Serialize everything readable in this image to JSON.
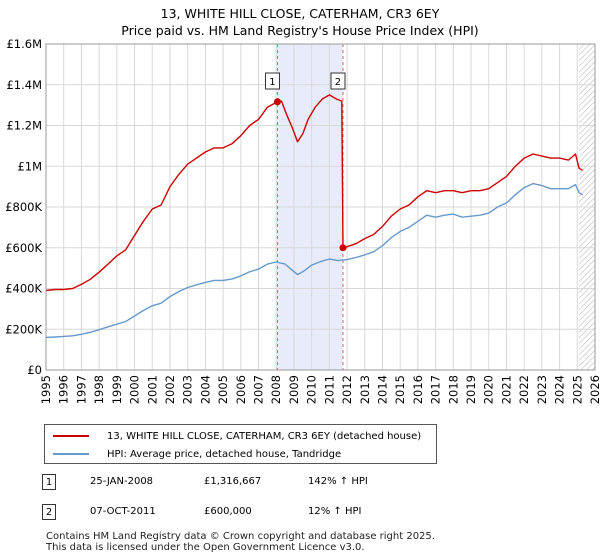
{
  "header": {
    "title": "13, WHITE HILL CLOSE, CATERHAM, CR3 6EY",
    "subtitle": "Price paid vs. HM Land Registry's House Price Index (HPI)"
  },
  "colors": {
    "property": "#cc0000",
    "hpi": "#6699cc",
    "shade": "#e8ecfa",
    "marker_line": "#e06060"
  },
  "chart_data": {
    "type": "line",
    "xlim": [
      1995,
      2026
    ],
    "ylim": [
      0,
      1600000
    ],
    "yticks": [
      {
        "value": 0,
        "label": "£0"
      },
      {
        "value": 200000,
        "label": "£200K"
      },
      {
        "value": 400000,
        "label": "£400K"
      },
      {
        "value": 600000,
        "label": "£600K"
      },
      {
        "value": 800000,
        "label": "£800K"
      },
      {
        "value": 1000000,
        "label": "£1M"
      },
      {
        "value": 1200000,
        "label": "£1.2M"
      },
      {
        "value": 1400000,
        "label": "£1.4M"
      },
      {
        "value": 1600000,
        "label": "£1.6M"
      }
    ],
    "xticks": [
      "1995",
      "1996",
      "1997",
      "1998",
      "1999",
      "2000",
      "2001",
      "2002",
      "2003",
      "2004",
      "2005",
      "2006",
      "2007",
      "2008",
      "2009",
      "2010",
      "2011",
      "2012",
      "2013",
      "2014",
      "2015",
      "2016",
      "2017",
      "2018",
      "2019",
      "2020",
      "2021",
      "2022",
      "2023",
      "2024",
      "2025",
      "2026"
    ],
    "shaded_period": [
      2008.07,
      2011.77
    ],
    "hatch_from": 2025.1,
    "series": [
      {
        "name": "13, WHITE HILL CLOSE, CATERHAM, CR3 6EY (detached house)",
        "color": "#cc0000",
        "points": [
          [
            1995.0,
            390000
          ],
          [
            1995.5,
            395000
          ],
          [
            1996.0,
            395000
          ],
          [
            1996.5,
            400000
          ],
          [
            1997.0,
            420000
          ],
          [
            1997.5,
            445000
          ],
          [
            1998.0,
            480000
          ],
          [
            1998.5,
            520000
          ],
          [
            1999.0,
            560000
          ],
          [
            1999.5,
            590000
          ],
          [
            2000.0,
            660000
          ],
          [
            2000.5,
            730000
          ],
          [
            2001.0,
            790000
          ],
          [
            2001.5,
            810000
          ],
          [
            2002.0,
            900000
          ],
          [
            2002.5,
            960000
          ],
          [
            2003.0,
            1010000
          ],
          [
            2003.5,
            1040000
          ],
          [
            2004.0,
            1070000
          ],
          [
            2004.5,
            1090000
          ],
          [
            2005.0,
            1090000
          ],
          [
            2005.5,
            1110000
          ],
          [
            2006.0,
            1150000
          ],
          [
            2006.5,
            1200000
          ],
          [
            2007.0,
            1230000
          ],
          [
            2007.5,
            1290000
          ],
          [
            2008.07,
            1316667
          ],
          [
            2008.3,
            1320000
          ],
          [
            2008.6,
            1250000
          ],
          [
            2008.9,
            1190000
          ],
          [
            2009.2,
            1120000
          ],
          [
            2009.5,
            1160000
          ],
          [
            2009.8,
            1230000
          ],
          [
            2010.2,
            1290000
          ],
          [
            2010.6,
            1330000
          ],
          [
            2011.0,
            1350000
          ],
          [
            2011.4,
            1330000
          ],
          [
            2011.7,
            1320000
          ],
          [
            2011.77,
            600000
          ],
          [
            2012.0,
            605000
          ],
          [
            2012.5,
            620000
          ],
          [
            2013.0,
            645000
          ],
          [
            2013.5,
            665000
          ],
          [
            2014.0,
            705000
          ],
          [
            2014.5,
            755000
          ],
          [
            2015.0,
            790000
          ],
          [
            2015.5,
            810000
          ],
          [
            2016.0,
            850000
          ],
          [
            2016.5,
            880000
          ],
          [
            2017.0,
            870000
          ],
          [
            2017.5,
            880000
          ],
          [
            2018.0,
            880000
          ],
          [
            2018.5,
            870000
          ],
          [
            2019.0,
            880000
          ],
          [
            2019.5,
            880000
          ],
          [
            2020.0,
            890000
          ],
          [
            2020.5,
            920000
          ],
          [
            2021.0,
            950000
          ],
          [
            2021.5,
            1000000
          ],
          [
            2022.0,
            1040000
          ],
          [
            2022.5,
            1060000
          ],
          [
            2023.0,
            1050000
          ],
          [
            2023.5,
            1040000
          ],
          [
            2024.0,
            1040000
          ],
          [
            2024.5,
            1030000
          ],
          [
            2024.9,
            1060000
          ],
          [
            2025.1,
            990000
          ],
          [
            2025.3,
            980000
          ]
        ]
      },
      {
        "name": "HPI: Average price, detached house, Tandridge",
        "color": "#6699cc",
        "points": [
          [
            1995.0,
            160000
          ],
          [
            1995.5,
            162000
          ],
          [
            1996.0,
            165000
          ],
          [
            1996.5,
            168000
          ],
          [
            1997.0,
            175000
          ],
          [
            1997.5,
            185000
          ],
          [
            1998.0,
            198000
          ],
          [
            1998.5,
            212000
          ],
          [
            1999.0,
            225000
          ],
          [
            1999.5,
            238000
          ],
          [
            2000.0,
            265000
          ],
          [
            2000.5,
            292000
          ],
          [
            2001.0,
            315000
          ],
          [
            2001.5,
            328000
          ],
          [
            2002.0,
            360000
          ],
          [
            2002.5,
            385000
          ],
          [
            2003.0,
            405000
          ],
          [
            2003.5,
            418000
          ],
          [
            2004.0,
            430000
          ],
          [
            2004.5,
            440000
          ],
          [
            2005.0,
            440000
          ],
          [
            2005.5,
            447000
          ],
          [
            2006.0,
            462000
          ],
          [
            2006.5,
            482000
          ],
          [
            2007.0,
            495000
          ],
          [
            2007.5,
            520000
          ],
          [
            2008.0,
            530000
          ],
          [
            2008.5,
            520000
          ],
          [
            2008.9,
            490000
          ],
          [
            2009.2,
            468000
          ],
          [
            2009.6,
            488000
          ],
          [
            2010.0,
            515000
          ],
          [
            2010.5,
            532000
          ],
          [
            2011.0,
            545000
          ],
          [
            2011.5,
            537000
          ],
          [
            2012.0,
            542000
          ],
          [
            2012.5,
            552000
          ],
          [
            2013.0,
            565000
          ],
          [
            2013.5,
            580000
          ],
          [
            2014.0,
            610000
          ],
          [
            2014.5,
            650000
          ],
          [
            2015.0,
            680000
          ],
          [
            2015.5,
            700000
          ],
          [
            2016.0,
            730000
          ],
          [
            2016.5,
            760000
          ],
          [
            2017.0,
            750000
          ],
          [
            2017.5,
            760000
          ],
          [
            2018.0,
            765000
          ],
          [
            2018.5,
            750000
          ],
          [
            2019.0,
            755000
          ],
          [
            2019.5,
            760000
          ],
          [
            2020.0,
            770000
          ],
          [
            2020.5,
            800000
          ],
          [
            2021.0,
            820000
          ],
          [
            2021.5,
            860000
          ],
          [
            2022.0,
            895000
          ],
          [
            2022.5,
            915000
          ],
          [
            2023.0,
            905000
          ],
          [
            2023.5,
            890000
          ],
          [
            2024.0,
            890000
          ],
          [
            2024.5,
            890000
          ],
          [
            2024.9,
            910000
          ],
          [
            2025.1,
            870000
          ],
          [
            2025.3,
            860000
          ]
        ]
      }
    ],
    "markers": [
      {
        "label": "1",
        "x": 2008.07,
        "y": 1316667
      },
      {
        "label": "2",
        "x": 2011.77,
        "y": 600000
      }
    ]
  },
  "legend": {
    "items": [
      {
        "label": "13, WHITE HILL CLOSE, CATERHAM, CR3 6EY (detached house)"
      },
      {
        "label": "HPI: Average price, detached house, Tandridge"
      }
    ]
  },
  "transactions": [
    {
      "num": "1",
      "date": "25-JAN-2008",
      "price": "£1,316,667",
      "hpi": "142% ↑ HPI"
    },
    {
      "num": "2",
      "date": "07-OCT-2011",
      "price": "£600,000",
      "hpi": "12% ↑ HPI"
    }
  ],
  "footer": {
    "line1": "Contains HM Land Registry data © Crown copyright and database right 2025.",
    "line2": "This data is licensed under the Open Government Licence v3.0."
  }
}
